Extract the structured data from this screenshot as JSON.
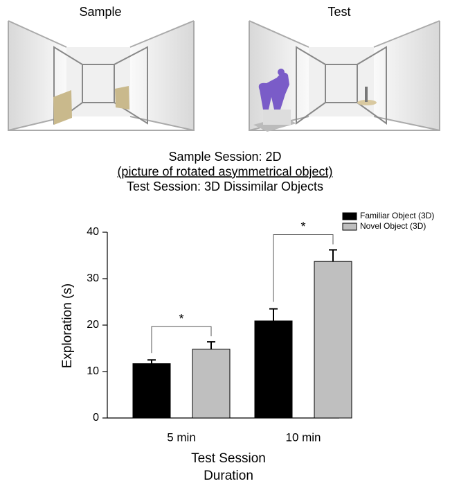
{
  "illustrations": {
    "sample": "Sample",
    "test": "Test"
  },
  "chart_data": {
    "type": "bar",
    "title_lines": [
      "Sample Session: 2D",
      "(picture of rotated asymmetrical object)",
      "Test Session: 3D Dissimilar Objects"
    ],
    "ylabel": "Exploration (s)",
    "xlabel": [
      "Test Session",
      "Duration"
    ],
    "categories": [
      "5 min",
      "10 min"
    ],
    "series": [
      {
        "name": "Familiar Object (3D)",
        "color": "#000000",
        "values": [
          11.7,
          20.9
        ],
        "errors": [
          0.8,
          2.6
        ]
      },
      {
        "name": "Novel Object (3D)",
        "color": "#bfbfbf",
        "values": [
          14.8,
          33.7
        ],
        "errors": [
          1.6,
          2.5
        ]
      }
    ],
    "annotations": [
      "*",
      "*"
    ],
    "ylim": [
      0,
      40
    ],
    "yticks": [
      0,
      10,
      20,
      30,
      40
    ],
    "legend": "upper right"
  }
}
